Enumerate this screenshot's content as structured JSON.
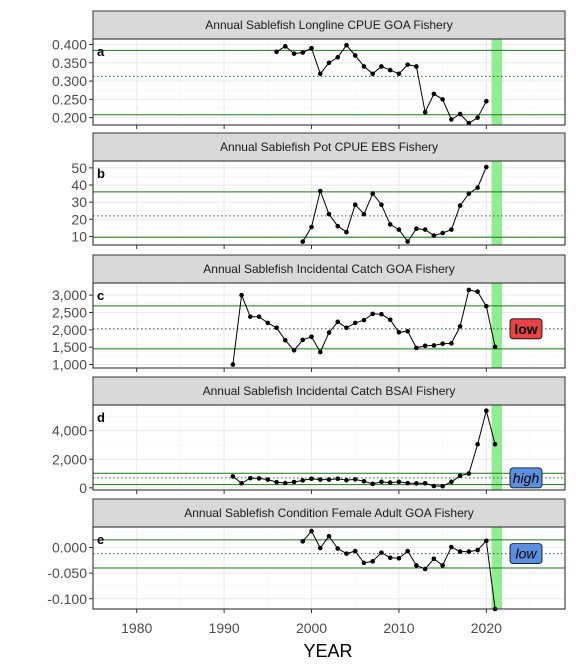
{
  "xlabel": "YEAR",
  "xlim": [
    1975,
    2029
  ],
  "x_ticks": [
    1980,
    1990,
    2000,
    2010,
    2020
  ],
  "colors": {
    "strip_bg": "#d9d9d9",
    "strip_border": "#333333",
    "panel_border": "#333333",
    "grid_major": "#ebebeb",
    "grid_minor": "#f5f5f5",
    "mean_line": "#1a7a1a",
    "sd_line": "#1a7a1a",
    "recent_band": "#90ee90",
    "series": "#000000",
    "low_badge": "#e84343",
    "high_badge": "#5b8fe0"
  },
  "chart_data": [
    {
      "type": "line",
      "title": "Annual Sablefish Longline CPUE GOA Fishery",
      "letter": "a",
      "ylim": [
        0.18,
        0.415
      ],
      "y_ticks": [
        0.2,
        0.25,
        0.3,
        0.35,
        0.4
      ],
      "y_tick_labels": [
        "0.200",
        "0.250",
        "0.300",
        "0.350",
        "0.400"
      ],
      "mean": 0.313,
      "sd_upper": 0.384,
      "sd_lower": 0.208,
      "badge": null,
      "x": [
        1996,
        1997,
        1998,
        1999,
        2000,
        2001,
        2002,
        2003,
        2004,
        2005,
        2006,
        2007,
        2008,
        2009,
        2010,
        2011,
        2012,
        2013,
        2014,
        2015,
        2016,
        2017,
        2018,
        2019,
        2020
      ],
      "y": [
        0.38,
        0.395,
        0.375,
        0.378,
        0.39,
        0.32,
        0.35,
        0.365,
        0.398,
        0.37,
        0.34,
        0.32,
        0.34,
        0.33,
        0.32,
        0.345,
        0.34,
        0.215,
        0.265,
        0.25,
        0.195,
        0.21,
        0.185,
        0.2,
        0.245
      ]
    },
    {
      "type": "line",
      "title": "Annual Sablefish Pot CPUE EBS Fishery",
      "letter": "b",
      "ylim": [
        5,
        54
      ],
      "y_ticks": [
        10,
        20,
        30,
        40,
        50
      ],
      "y_tick_labels": [
        "10",
        "20",
        "30",
        "40",
        "50"
      ],
      "mean": 22,
      "sd_upper": 36,
      "sd_lower": 9.5,
      "badge": null,
      "x": [
        1999,
        2000,
        2001,
        2002,
        2003,
        2004,
        2005,
        2006,
        2007,
        2008,
        2009,
        2010,
        2011,
        2012,
        2013,
        2014,
        2015,
        2016,
        2017,
        2018,
        2019,
        2020
      ],
      "y": [
        7,
        15.5,
        36.5,
        23,
        16,
        12.5,
        28.5,
        23,
        35,
        28.5,
        17,
        14,
        7,
        14.5,
        14,
        10.5,
        12,
        14,
        28,
        35,
        38.5,
        50.5
      ]
    },
    {
      "type": "line",
      "title": "Annual Sablefish Incidental Catch GOA Fishery",
      "letter": "c",
      "ylim": [
        900,
        3350
      ],
      "y_ticks": [
        1000,
        1500,
        2000,
        2500,
        3000
      ],
      "y_tick_labels": [
        "1,000",
        "1,500",
        "2,000",
        "2,500",
        "3,000"
      ],
      "mean": 2030,
      "sd_upper": 2690,
      "sd_lower": 1450,
      "badge": {
        "text": "low",
        "kind": "low"
      },
      "x": [
        1991,
        1992,
        1993,
        1994,
        1995,
        1996,
        1997,
        1998,
        1999,
        2000,
        2001,
        2002,
        2003,
        2004,
        2005,
        2006,
        2007,
        2008,
        2009,
        2010,
        2011,
        2012,
        2013,
        2014,
        2015,
        2016,
        2017,
        2018,
        2019,
        2020,
        2021
      ],
      "y": [
        1000,
        3000,
        2380,
        2380,
        2200,
        2060,
        1700,
        1410,
        1710,
        1800,
        1360,
        1920,
        2230,
        2060,
        2200,
        2280,
        2460,
        2450,
        2290,
        1930,
        1960,
        1480,
        1540,
        1550,
        1600,
        1610,
        2100,
        3150,
        3100,
        2680,
        1510
      ]
    },
    {
      "type": "line",
      "title": "Annual Sablefish Incidental Catch BSAI Fishery",
      "letter": "d",
      "ylim": [
        -150,
        5800
      ],
      "y_ticks": [
        0,
        2000,
        4000
      ],
      "y_tick_labels": [
        "0",
        "2,000",
        "4,000"
      ],
      "mean": 700,
      "sd_upper": 1020,
      "sd_lower": 230,
      "badge": {
        "text": "high",
        "kind": "high"
      },
      "x": [
        1991,
        1992,
        1993,
        1994,
        1995,
        1996,
        1997,
        1998,
        1999,
        2000,
        2001,
        2002,
        2003,
        2004,
        2005,
        2006,
        2007,
        2008,
        2009,
        2010,
        2011,
        2012,
        2013,
        2014,
        2015,
        2016,
        2017,
        2018,
        2019,
        2020,
        2021
      ],
      "y": [
        800,
        320,
        680,
        660,
        580,
        400,
        340,
        410,
        520,
        640,
        580,
        580,
        640,
        540,
        590,
        460,
        280,
        420,
        370,
        420,
        330,
        310,
        320,
        130,
        120,
        420,
        850,
        1000,
        3050,
        5400,
        3050
      ]
    },
    {
      "type": "line",
      "title": "Annual Sablefish Condition Female Adult GOA Fishery",
      "letter": "e",
      "ylim": [
        -0.12,
        0.04
      ],
      "y_ticks": [
        -0.1,
        -0.05,
        0.0
      ],
      "y_tick_labels": [
        "-0.100",
        "-0.050",
        "0.000"
      ],
      "mean": -0.012,
      "sd_upper": 0.015,
      "sd_lower": -0.04,
      "badge": {
        "text": "low",
        "kind": "high"
      },
      "x": [
        1999,
        2000,
        2001,
        2002,
        2003,
        2004,
        2005,
        2006,
        2007,
        2008,
        2009,
        2010,
        2011,
        2012,
        2013,
        2014,
        2015,
        2016,
        2017,
        2018,
        2019,
        2020,
        2021
      ],
      "y": [
        0.012,
        0.032,
        -0.001,
        0.022,
        -0.002,
        -0.012,
        -0.007,
        -0.03,
        -0.027,
        -0.01,
        -0.02,
        -0.021,
        -0.007,
        -0.035,
        -0.042,
        -0.022,
        -0.035,
        0.001,
        -0.008,
        -0.008,
        -0.005,
        0.013,
        -0.12
      ]
    }
  ]
}
